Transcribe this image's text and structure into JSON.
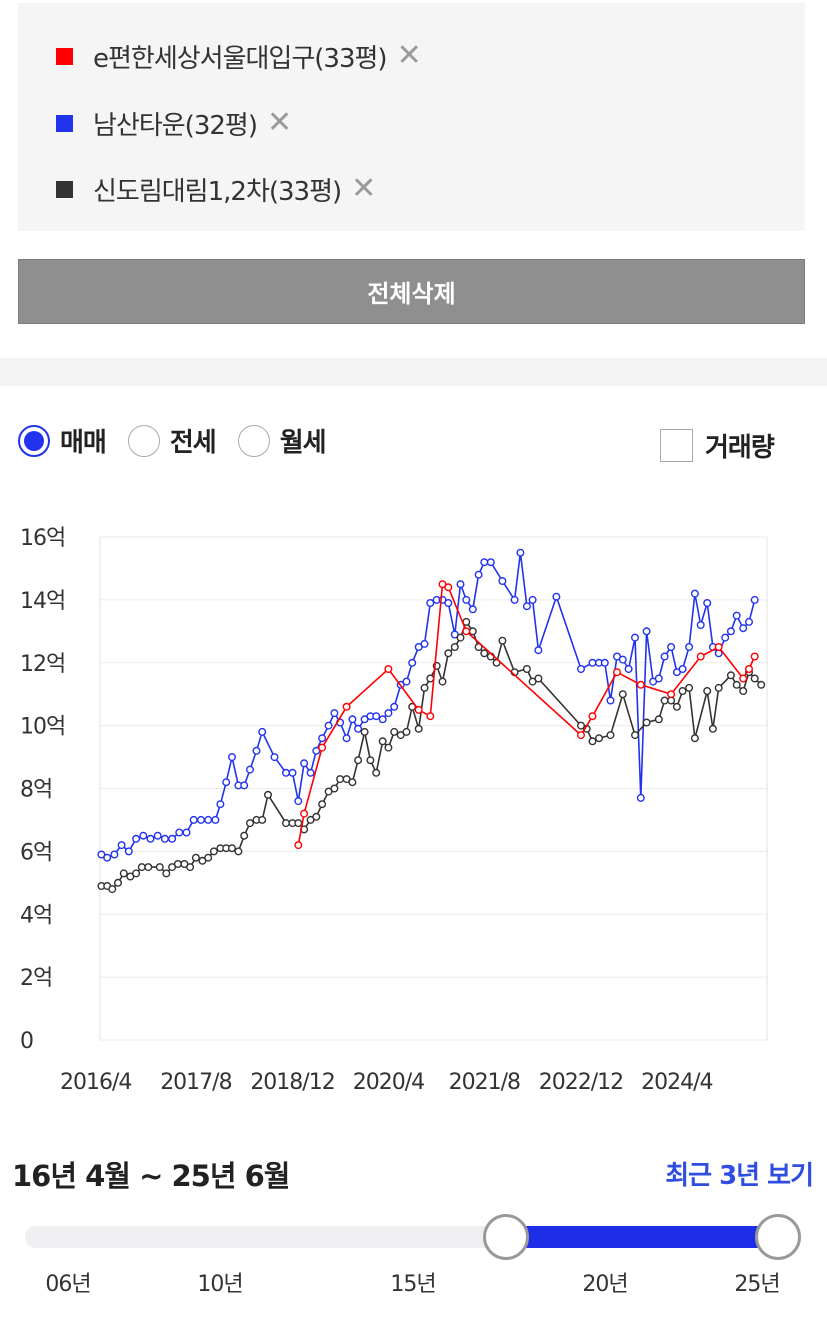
{
  "compare": {
    "items": [
      {
        "label": "e편한세상서울대입구(33평)",
        "color": "#ff0000"
      },
      {
        "label": "남산타운(32평)",
        "color": "#2233ee"
      },
      {
        "label": "신도림대림1,2차(33평)",
        "color": "#333333"
      }
    ],
    "delete_all_label": "전체삭제"
  },
  "tabs": {
    "options": [
      {
        "label": "매매",
        "checked": true
      },
      {
        "label": "전세",
        "checked": false
      },
      {
        "label": "월세",
        "checked": false
      }
    ],
    "volume_label": "거래량",
    "volume_checked": false
  },
  "chart_data": {
    "type": "line",
    "y_ticks": [
      {
        "v": 0,
        "label": "0"
      },
      {
        "v": 2,
        "label": "2억"
      },
      {
        "v": 4,
        "label": "4억"
      },
      {
        "v": 6,
        "label": "6억"
      },
      {
        "v": 8,
        "label": "8억"
      },
      {
        "v": 10,
        "label": "10억"
      },
      {
        "v": 12,
        "label": "12억"
      },
      {
        "v": 14,
        "label": "14억"
      },
      {
        "v": 16,
        "label": "16억"
      }
    ],
    "x_ticks": [
      {
        "t": 2016.25,
        "label": "2016/4"
      },
      {
        "t": 2017.58,
        "label": "2017/8"
      },
      {
        "t": 2018.92,
        "label": "2018/12"
      },
      {
        "t": 2020.25,
        "label": "2020/4"
      },
      {
        "t": 2021.58,
        "label": "2021/8"
      },
      {
        "t": 2022.92,
        "label": "2022/12"
      },
      {
        "t": 2024.25,
        "label": "2024/4"
      }
    ],
    "ylim": [
      0,
      16
    ],
    "xlim": [
      2016.25,
      2025.5
    ],
    "grid": true,
    "series": [
      {
        "name": "남산타운(32평)",
        "color": "#2233ee",
        "points": [
          [
            2016.27,
            5.9
          ],
          [
            2016.35,
            5.8
          ],
          [
            2016.45,
            5.9
          ],
          [
            2016.55,
            6.2
          ],
          [
            2016.65,
            6.0
          ],
          [
            2016.75,
            6.4
          ],
          [
            2016.85,
            6.5
          ],
          [
            2016.95,
            6.4
          ],
          [
            2017.05,
            6.5
          ],
          [
            2017.15,
            6.4
          ],
          [
            2017.25,
            6.4
          ],
          [
            2017.35,
            6.6
          ],
          [
            2017.45,
            6.6
          ],
          [
            2017.55,
            7.0
          ],
          [
            2017.65,
            7.0
          ],
          [
            2017.75,
            7.0
          ],
          [
            2017.85,
            7.0
          ],
          [
            2017.92,
            7.5
          ],
          [
            2018.0,
            8.2
          ],
          [
            2018.08,
            9.0
          ],
          [
            2018.17,
            8.1
          ],
          [
            2018.25,
            8.1
          ],
          [
            2018.33,
            8.6
          ],
          [
            2018.42,
            9.2
          ],
          [
            2018.5,
            9.8
          ],
          [
            2018.67,
            9.0
          ],
          [
            2018.83,
            8.5
          ],
          [
            2018.92,
            8.5
          ],
          [
            2019.0,
            7.6
          ],
          [
            2019.08,
            8.8
          ],
          [
            2019.17,
            8.5
          ],
          [
            2019.25,
            9.2
          ],
          [
            2019.33,
            9.6
          ],
          [
            2019.42,
            10.0
          ],
          [
            2019.5,
            10.4
          ],
          [
            2019.58,
            10.1
          ],
          [
            2019.67,
            9.6
          ],
          [
            2019.75,
            10.2
          ],
          [
            2019.83,
            9.9
          ],
          [
            2019.92,
            10.2
          ],
          [
            2020.0,
            10.3
          ],
          [
            2020.08,
            10.3
          ],
          [
            2020.17,
            10.2
          ],
          [
            2020.25,
            10.4
          ],
          [
            2020.33,
            10.6
          ],
          [
            2020.42,
            11.3
          ],
          [
            2020.5,
            11.4
          ],
          [
            2020.58,
            12.0
          ],
          [
            2020.67,
            12.5
          ],
          [
            2020.75,
            12.6
          ],
          [
            2020.83,
            13.9
          ],
          [
            2020.92,
            14.0
          ],
          [
            2021.0,
            14.0
          ],
          [
            2021.08,
            13.9
          ],
          [
            2021.17,
            12.9
          ],
          [
            2021.25,
            14.5
          ],
          [
            2021.33,
            14.0
          ],
          [
            2021.42,
            13.7
          ],
          [
            2021.5,
            14.8
          ],
          [
            2021.58,
            15.2
          ],
          [
            2021.67,
            15.2
          ],
          [
            2021.83,
            14.6
          ],
          [
            2022.0,
            14.0
          ],
          [
            2022.08,
            15.5
          ],
          [
            2022.17,
            13.8
          ],
          [
            2022.25,
            14.0
          ],
          [
            2022.33,
            12.4
          ],
          [
            2022.58,
            14.1
          ],
          [
            2022.92,
            11.8
          ],
          [
            2023.08,
            12.0
          ],
          [
            2023.17,
            12.0
          ],
          [
            2023.25,
            12.0
          ],
          [
            2023.33,
            10.8
          ],
          [
            2023.42,
            12.2
          ],
          [
            2023.5,
            12.1
          ],
          [
            2023.58,
            11.8
          ],
          [
            2023.67,
            12.8
          ],
          [
            2023.75,
            7.7
          ],
          [
            2023.83,
            13.0
          ],
          [
            2023.92,
            11.4
          ],
          [
            2024.0,
            11.5
          ],
          [
            2024.08,
            12.2
          ],
          [
            2024.17,
            12.5
          ],
          [
            2024.25,
            11.7
          ],
          [
            2024.33,
            11.8
          ],
          [
            2024.42,
            12.5
          ],
          [
            2024.5,
            14.2
          ],
          [
            2024.58,
            13.2
          ],
          [
            2024.67,
            13.9
          ],
          [
            2024.75,
            12.5
          ],
          [
            2024.83,
            12.3
          ],
          [
            2024.92,
            12.8
          ],
          [
            2025.0,
            13.0
          ],
          [
            2025.08,
            13.5
          ],
          [
            2025.17,
            13.1
          ],
          [
            2025.25,
            13.3
          ],
          [
            2025.33,
            14.0
          ]
        ]
      },
      {
        "name": "신도림대림1,2차(33평)",
        "color": "#333333",
        "points": [
          [
            2016.27,
            4.9
          ],
          [
            2016.35,
            4.9
          ],
          [
            2016.42,
            4.8
          ],
          [
            2016.5,
            5.0
          ],
          [
            2016.58,
            5.3
          ],
          [
            2016.67,
            5.2
          ],
          [
            2016.75,
            5.3
          ],
          [
            2016.83,
            5.5
          ],
          [
            2016.92,
            5.5
          ],
          [
            2017.08,
            5.5
          ],
          [
            2017.17,
            5.3
          ],
          [
            2017.25,
            5.5
          ],
          [
            2017.33,
            5.6
          ],
          [
            2017.42,
            5.6
          ],
          [
            2017.5,
            5.5
          ],
          [
            2017.58,
            5.8
          ],
          [
            2017.67,
            5.7
          ],
          [
            2017.75,
            5.8
          ],
          [
            2017.83,
            6.0
          ],
          [
            2017.92,
            6.1
          ],
          [
            2018.0,
            6.1
          ],
          [
            2018.08,
            6.1
          ],
          [
            2018.17,
            6.0
          ],
          [
            2018.25,
            6.5
          ],
          [
            2018.33,
            6.9
          ],
          [
            2018.42,
            7.0
          ],
          [
            2018.5,
            7.0
          ],
          [
            2018.58,
            7.8
          ],
          [
            2018.83,
            6.9
          ],
          [
            2018.92,
            6.9
          ],
          [
            2019.0,
            6.9
          ],
          [
            2019.08,
            6.7
          ],
          [
            2019.17,
            7.0
          ],
          [
            2019.25,
            7.1
          ],
          [
            2019.33,
            7.5
          ],
          [
            2019.42,
            7.9
          ],
          [
            2019.5,
            8.0
          ],
          [
            2019.58,
            8.3
          ],
          [
            2019.67,
            8.3
          ],
          [
            2019.75,
            8.2
          ],
          [
            2019.83,
            8.9
          ],
          [
            2019.92,
            9.8
          ],
          [
            2020.0,
            8.9
          ],
          [
            2020.08,
            8.5
          ],
          [
            2020.17,
            9.5
          ],
          [
            2020.25,
            9.3
          ],
          [
            2020.33,
            9.8
          ],
          [
            2020.42,
            9.7
          ],
          [
            2020.5,
            9.8
          ],
          [
            2020.58,
            10.6
          ],
          [
            2020.67,
            9.9
          ],
          [
            2020.75,
            11.2
          ],
          [
            2020.83,
            11.5
          ],
          [
            2020.92,
            11.9
          ],
          [
            2021.0,
            11.4
          ],
          [
            2021.08,
            12.3
          ],
          [
            2021.17,
            12.5
          ],
          [
            2021.25,
            12.8
          ],
          [
            2021.33,
            13.3
          ],
          [
            2021.42,
            13.0
          ],
          [
            2021.5,
            12.5
          ],
          [
            2021.58,
            12.3
          ],
          [
            2021.67,
            12.2
          ],
          [
            2021.75,
            12.0
          ],
          [
            2021.83,
            12.7
          ],
          [
            2022.0,
            11.7
          ],
          [
            2022.17,
            11.8
          ],
          [
            2022.25,
            11.4
          ],
          [
            2022.33,
            11.5
          ],
          [
            2022.92,
            10.0
          ],
          [
            2023.0,
            9.9
          ],
          [
            2023.08,
            9.5
          ],
          [
            2023.17,
            9.6
          ],
          [
            2023.33,
            9.7
          ],
          [
            2023.5,
            11.0
          ],
          [
            2023.67,
            9.7
          ],
          [
            2023.83,
            10.1
          ],
          [
            2024.0,
            10.2
          ],
          [
            2024.08,
            10.8
          ],
          [
            2024.17,
            10.8
          ],
          [
            2024.25,
            10.6
          ],
          [
            2024.33,
            11.1
          ],
          [
            2024.42,
            11.2
          ],
          [
            2024.5,
            9.6
          ],
          [
            2024.67,
            11.1
          ],
          [
            2024.75,
            9.9
          ],
          [
            2024.83,
            11.2
          ],
          [
            2025.0,
            11.6
          ],
          [
            2025.08,
            11.3
          ],
          [
            2025.17,
            11.1
          ],
          [
            2025.25,
            11.7
          ],
          [
            2025.33,
            11.5
          ],
          [
            2025.42,
            11.3
          ]
        ]
      },
      {
        "name": "e편한세상서울대입구(33평)",
        "color": "#ff0000",
        "points": [
          [
            2019.0,
            6.2
          ],
          [
            2019.08,
            7.2
          ],
          [
            2019.33,
            9.3
          ],
          [
            2019.67,
            10.6
          ],
          [
            2020.25,
            11.8
          ],
          [
            2020.67,
            10.5
          ],
          [
            2020.83,
            10.3
          ],
          [
            2021.0,
            14.5
          ],
          [
            2021.08,
            14.4
          ],
          [
            2021.33,
            13.0
          ],
          [
            2022.92,
            9.7
          ],
          [
            2023.08,
            10.3
          ],
          [
            2023.42,
            11.7
          ],
          [
            2023.75,
            11.3
          ],
          [
            2024.17,
            11.0
          ],
          [
            2024.58,
            12.2
          ],
          [
            2024.83,
            12.5
          ],
          [
            2025.17,
            11.5
          ],
          [
            2025.25,
            11.8
          ],
          [
            2025.33,
            12.2
          ]
        ]
      }
    ]
  },
  "range": {
    "text": "16년 4월 ~ 25년 6월",
    "recent_label": "최근 3년 보기",
    "start_year": 2016.25,
    "end_year": 2025.5,
    "min_year": 2006,
    "max_year": 2025.5,
    "labels": [
      {
        "year": 2006,
        "label": "06년"
      },
      {
        "year": 2010,
        "label": "10년"
      },
      {
        "year": 2015,
        "label": "15년"
      },
      {
        "year": 2020,
        "label": "20년"
      },
      {
        "year": 2024,
        "label": "25년"
      }
    ]
  }
}
